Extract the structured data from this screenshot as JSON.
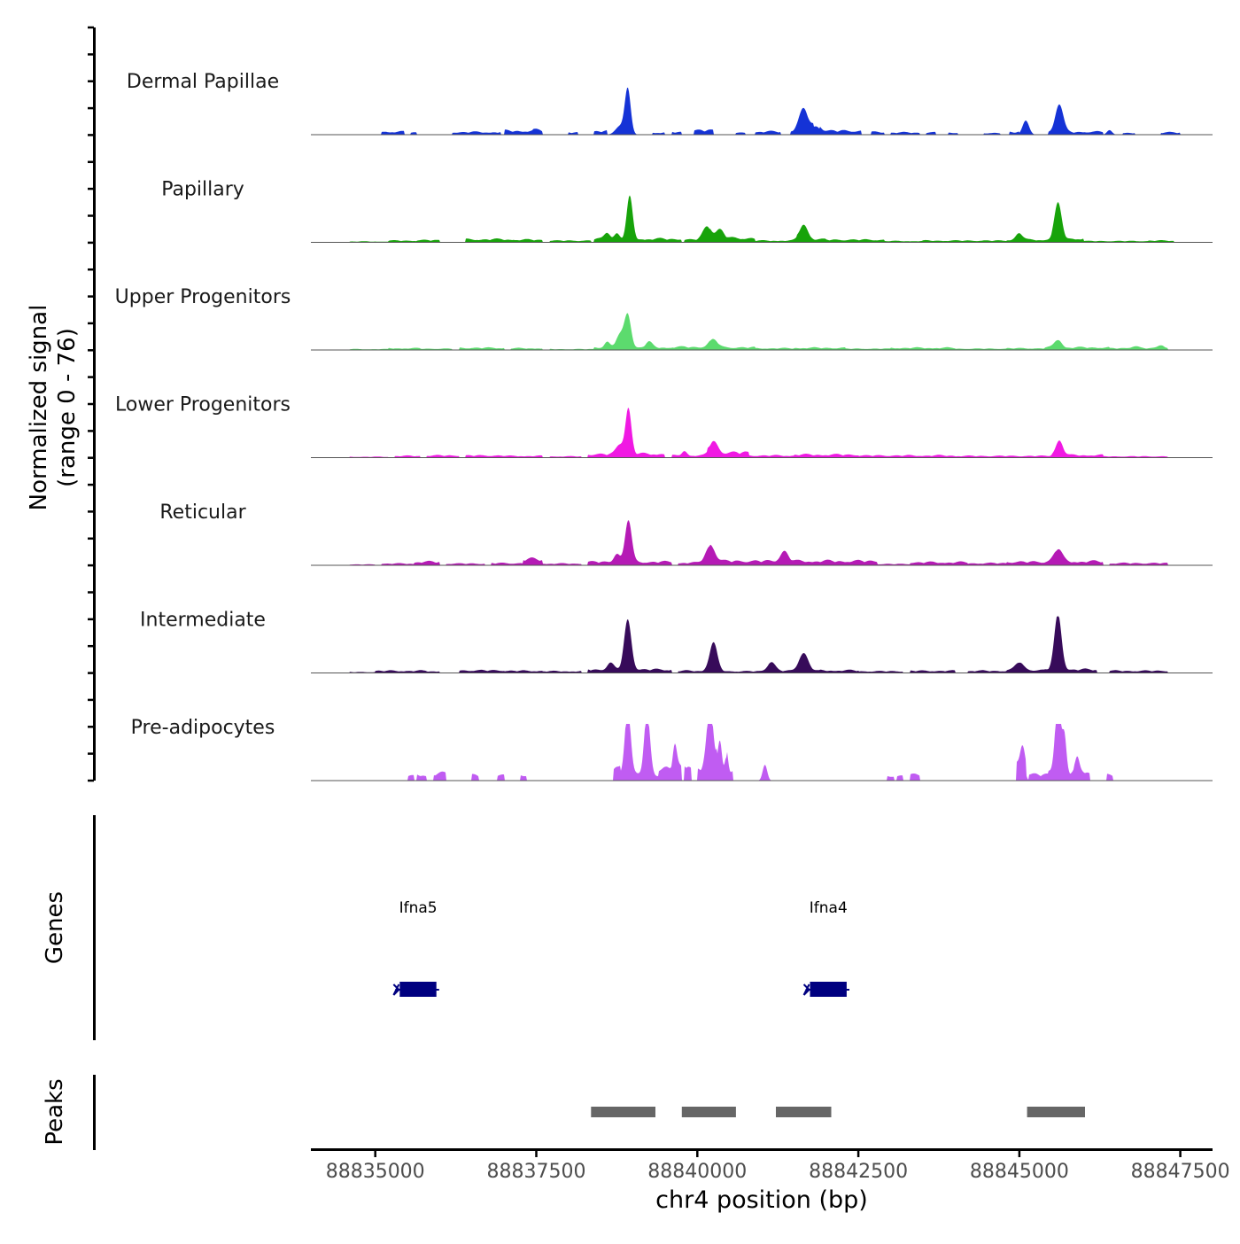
{
  "chart_data": {
    "type": "area",
    "region": {
      "chromosome": "chr4",
      "start": 88834000,
      "end": 88848000
    },
    "y_axis": {
      "label_line1": "Normalized signal",
      "label_line2": "(range 0 - 76)",
      "range": [
        0,
        76
      ]
    },
    "x_axis": {
      "label": "chr4 position (bp)",
      "ticks": [
        88835000,
        88837500,
        88840000,
        88842500,
        88845000,
        88847500
      ],
      "tick_labels": [
        "88835000",
        "88837500",
        "88840000",
        "88842500",
        "88845000",
        "88847500"
      ]
    },
    "tracks": [
      {
        "name": "Dermal Papillae",
        "color": "#1533d6",
        "bg": [
          [
            88835100,
            88835450,
            7
          ],
          [
            88835550,
            88835650,
            5
          ],
          [
            88836200,
            88836950,
            6
          ],
          [
            88837000,
            88837450,
            9
          ],
          [
            88837450,
            88837600,
            11
          ],
          [
            88838000,
            88838150,
            5
          ],
          [
            88838400,
            88838600,
            8
          ],
          [
            88839300,
            88839500,
            5
          ],
          [
            88839600,
            88839750,
            6
          ],
          [
            88839950,
            88840250,
            10
          ],
          [
            88840600,
            88840750,
            4
          ],
          [
            88840900,
            88841300,
            7
          ],
          [
            88841450,
            88841800,
            8
          ],
          [
            88841900,
            88842550,
            9
          ],
          [
            88842700,
            88842900,
            6
          ],
          [
            88843000,
            88843450,
            5
          ],
          [
            88843550,
            88843700,
            5
          ],
          [
            88843900,
            88844050,
            5
          ],
          [
            88844450,
            88844700,
            4
          ],
          [
            88844850,
            88845000,
            6
          ],
          [
            88845450,
            88846000,
            6
          ],
          [
            88846000,
            88846300,
            7
          ],
          [
            88846600,
            88846800,
            4
          ],
          [
            88847200,
            88847500,
            5
          ]
        ],
        "peaks": [
          [
            88838920,
            80,
            45
          ],
          [
            88838800,
            15,
            70
          ],
          [
            88841650,
            40,
            70
          ],
          [
            88841850,
            14,
            60
          ],
          [
            88845100,
            25,
            50
          ],
          [
            88845620,
            50,
            60
          ],
          [
            88846400,
            8,
            40
          ]
        ]
      },
      {
        "name": "Papillary",
        "color": "#17a30a",
        "bg": [
          [
            88834600,
            88835200,
            2
          ],
          [
            88835200,
            88835700,
            4
          ],
          [
            88835650,
            88836000,
            5
          ],
          [
            88836400,
            88837150,
            7
          ],
          [
            88837150,
            88837600,
            6
          ],
          [
            88837700,
            88838350,
            4
          ],
          [
            88838400,
            88839750,
            8
          ],
          [
            88839800,
            88840200,
            6
          ],
          [
            88840200,
            88840900,
            10
          ],
          [
            88840900,
            88841600,
            4
          ],
          [
            88841550,
            88842000,
            7
          ],
          [
            88842000,
            88842900,
            6
          ],
          [
            88842900,
            88843500,
            3
          ],
          [
            88843500,
            88844200,
            4
          ],
          [
            88844200,
            88844800,
            4
          ],
          [
            88844800,
            88845500,
            6
          ],
          [
            88845500,
            88846000,
            9
          ],
          [
            88846000,
            88847000,
            3
          ],
          [
            88847000,
            88847400,
            4
          ]
        ],
        "peaks": [
          [
            88838950,
            75,
            45
          ],
          [
            88838600,
            12,
            45
          ],
          [
            88838750,
            10,
            40
          ],
          [
            88840150,
            24,
            65
          ],
          [
            88840350,
            15,
            60
          ],
          [
            88841650,
            26,
            65
          ],
          [
            88845000,
            12,
            50
          ],
          [
            88845600,
            62,
            55
          ]
        ]
      },
      {
        "name": "Upper Progenitors",
        "color": "#5cdb6e",
        "bg": [
          [
            88834600,
            88835200,
            2
          ],
          [
            88835200,
            88835700,
            4
          ],
          [
            88835700,
            88836200,
            3
          ],
          [
            88836300,
            88837000,
            5
          ],
          [
            88837100,
            88837600,
            4
          ],
          [
            88837700,
            88838400,
            2
          ],
          [
            88838400,
            88839600,
            6
          ],
          [
            88839600,
            88840200,
            7
          ],
          [
            88840200,
            88840900,
            6
          ],
          [
            88840900,
            88841500,
            4
          ],
          [
            88841500,
            88842300,
            5
          ],
          [
            88842300,
            88843000,
            3
          ],
          [
            88843000,
            88844000,
            5
          ],
          [
            88844000,
            88844800,
            3
          ],
          [
            88844800,
            88845400,
            4
          ],
          [
            88845400,
            88846400,
            6
          ],
          [
            88846400,
            88847300,
            4
          ]
        ],
        "peaks": [
          [
            88838920,
            58,
            50
          ],
          [
            88838800,
            22,
            60
          ],
          [
            88838600,
            10,
            40
          ],
          [
            88839250,
            10,
            50
          ],
          [
            88840250,
            14,
            70
          ],
          [
            88845600,
            14,
            55
          ],
          [
            88846800,
            4,
            60
          ],
          [
            88847200,
            6,
            50
          ]
        ]
      },
      {
        "name": "Lower Progenitors",
        "color": "#f019e3",
        "bg": [
          [
            88834600,
            88835200,
            2
          ],
          [
            88835300,
            88835700,
            4
          ],
          [
            88835800,
            88836300,
            5
          ],
          [
            88836400,
            88837000,
            5
          ],
          [
            88837000,
            88837600,
            4
          ],
          [
            88837700,
            88838200,
            3
          ],
          [
            88838300,
            88838900,
            8
          ],
          [
            88838900,
            88839500,
            9
          ],
          [
            88839600,
            88840150,
            5
          ],
          [
            88840150,
            88840800,
            12
          ],
          [
            88840800,
            88841500,
            5
          ],
          [
            88841500,
            88842500,
            7
          ],
          [
            88842500,
            88843300,
            5
          ],
          [
            88843300,
            88844000,
            5
          ],
          [
            88844000,
            88844800,
            4
          ],
          [
            88844800,
            88845500,
            4
          ],
          [
            88845500,
            88846300,
            6
          ],
          [
            88846300,
            88847300,
            3
          ]
        ],
        "peaks": [
          [
            88838930,
            80,
            45
          ],
          [
            88838800,
            18,
            60
          ],
          [
            88839800,
            8,
            40
          ],
          [
            88840250,
            20,
            65
          ],
          [
            88845620,
            26,
            55
          ]
        ]
      },
      {
        "name": "Reticular",
        "color": "#b51ab5",
        "bg": [
          [
            88834600,
            88835000,
            2
          ],
          [
            88835100,
            88835600,
            4
          ],
          [
            88835600,
            88836000,
            8
          ],
          [
            88836100,
            88836700,
            4
          ],
          [
            88836800,
            88837300,
            5
          ],
          [
            88837300,
            88837600,
            14
          ],
          [
            88837600,
            88838200,
            4
          ],
          [
            88838300,
            88838900,
            8
          ],
          [
            88838900,
            88839600,
            8
          ],
          [
            88839700,
            88840200,
            6
          ],
          [
            88840200,
            88841000,
            10
          ],
          [
            88841000,
            88842000,
            10
          ],
          [
            88842000,
            88842800,
            10
          ],
          [
            88842800,
            88843300,
            3
          ],
          [
            88843300,
            88844200,
            7
          ],
          [
            88844200,
            88844800,
            5
          ],
          [
            88844800,
            88845400,
            8
          ],
          [
            88845400,
            88846300,
            9
          ],
          [
            88846400,
            88847300,
            5
          ]
        ],
        "peaks": [
          [
            88838930,
            75,
            50
          ],
          [
            88838750,
            15,
            45
          ],
          [
            88840200,
            30,
            70
          ],
          [
            88841350,
            18,
            60
          ],
          [
            88845600,
            22,
            65
          ]
        ]
      },
      {
        "name": "Intermediate",
        "color": "#370b5a",
        "bg": [
          [
            88834600,
            88835000,
            2
          ],
          [
            88835000,
            88835800,
            5
          ],
          [
            88835800,
            88836000,
            4
          ],
          [
            88836300,
            88837000,
            6
          ],
          [
            88837000,
            88837600,
            5
          ],
          [
            88837600,
            88838200,
            4
          ],
          [
            88838300,
            88838900,
            8
          ],
          [
            88838900,
            88839600,
            8
          ],
          [
            88839700,
            88840300,
            5
          ],
          [
            88840300,
            88841100,
            4
          ],
          [
            88841100,
            88841900,
            5
          ],
          [
            88841900,
            88842500,
            6
          ],
          [
            88842500,
            88843200,
            4
          ],
          [
            88843300,
            88844000,
            5
          ],
          [
            88844200,
            88844800,
            5
          ],
          [
            88844800,
            88845400,
            7
          ],
          [
            88845400,
            88846200,
            8
          ],
          [
            88846400,
            88847300,
            5
          ]
        ],
        "peaks": [
          [
            88838920,
            88,
            55
          ],
          [
            88838650,
            12,
            50
          ],
          [
            88840250,
            50,
            60
          ],
          [
            88841150,
            16,
            60
          ],
          [
            88841650,
            32,
            70
          ],
          [
            88845600,
            98,
            55
          ],
          [
            88845000,
            14,
            60
          ]
        ]
      },
      {
        "name": "Pre-adipocytes",
        "color": "#c05cf2",
        "bg": [
          [
            88835500,
            88835600,
            10
          ],
          [
            88835650,
            88835800,
            14
          ],
          [
            88835900,
            88836100,
            16
          ],
          [
            88836500,
            88836600,
            12
          ],
          [
            88836900,
            88837000,
            12
          ],
          [
            88837250,
            88837350,
            14
          ],
          [
            88838700,
            88838800,
            30
          ],
          [
            88838800,
            88839500,
            14
          ],
          [
            88839400,
            88839750,
            30
          ],
          [
            88839800,
            88839900,
            40
          ],
          [
            88840000,
            88840300,
            30
          ],
          [
            88840450,
            88840550,
            25
          ],
          [
            88842950,
            88843050,
            12
          ],
          [
            88843100,
            88843200,
            10
          ],
          [
            88843300,
            88843450,
            14
          ],
          [
            88844950,
            88845100,
            40
          ],
          [
            88845150,
            88845450,
            14
          ],
          [
            88845450,
            88845900,
            20
          ],
          [
            88845850,
            88846100,
            24
          ],
          [
            88846350,
            88846450,
            12
          ]
        ],
        "peaks": [
          [
            88838920,
            120,
            45
          ],
          [
            88839220,
            108,
            45
          ],
          [
            88839650,
            40,
            30
          ],
          [
            88840200,
            104,
            50
          ],
          [
            88840350,
            70,
            35
          ],
          [
            88840450,
            40,
            25
          ],
          [
            88841050,
            28,
            35
          ],
          [
            88845050,
            40,
            35
          ],
          [
            88845600,
            128,
            45
          ],
          [
            88845700,
            60,
            30
          ],
          [
            88845900,
            20,
            30
          ]
        ]
      }
    ],
    "genes_track": {
      "label": "Genes",
      "genes": [
        {
          "name": "Ifna5",
          "start": 88835380,
          "end": 88835950,
          "strand": "-"
        },
        {
          "name": "Ifna4",
          "start": 88841750,
          "end": 88842320,
          "strand": "-"
        }
      ]
    },
    "peaks_track": {
      "label": "Peaks",
      "peaks": [
        [
          88838350,
          88839350
        ],
        [
          88839760,
          88840600
        ],
        [
          88841220,
          88842080
        ],
        [
          88845120,
          88846020
        ]
      ]
    }
  }
}
